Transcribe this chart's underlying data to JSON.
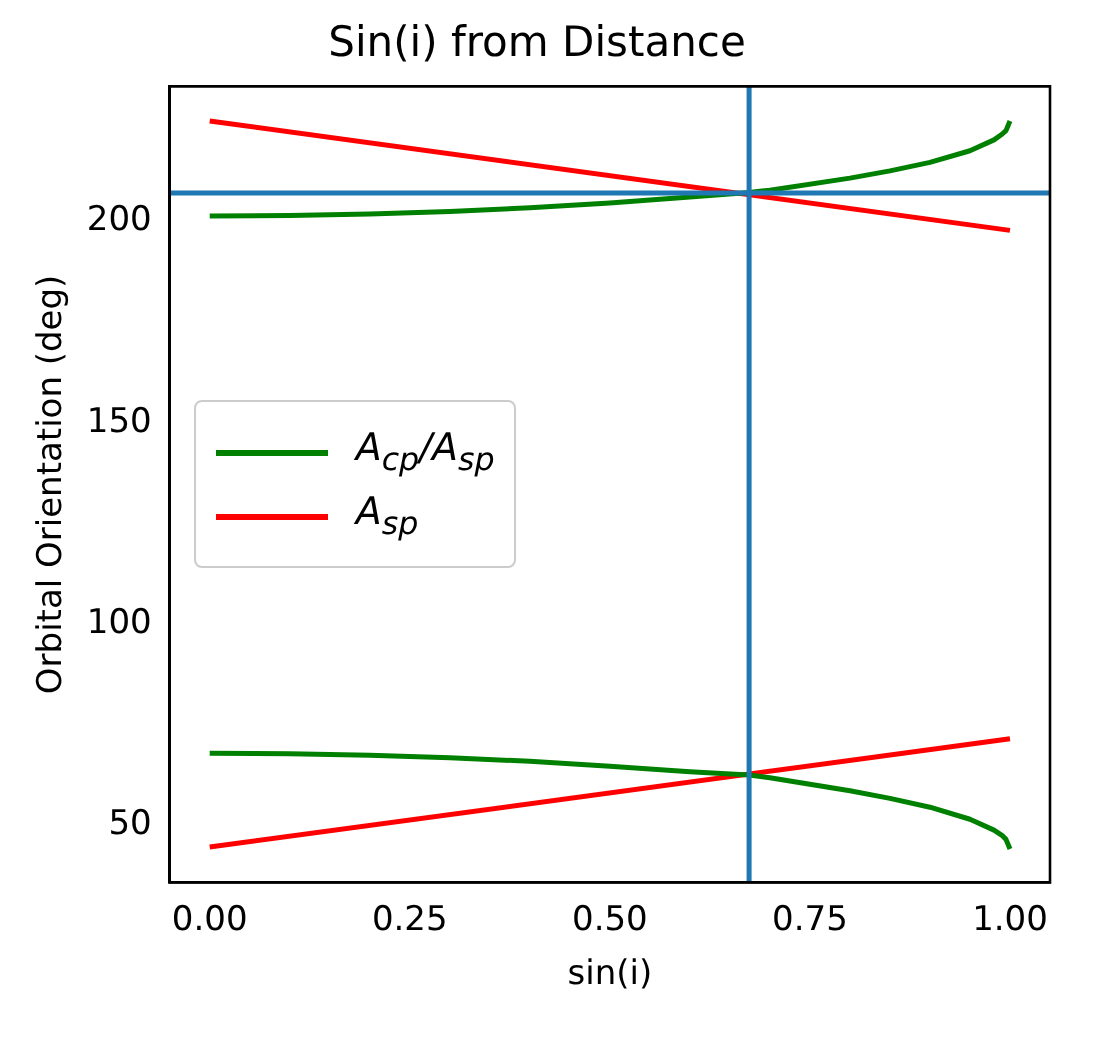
{
  "chart_data": {
    "type": "line",
    "title": "Sin(i) from Distance",
    "xlabel": "sin(i)",
    "ylabel": "Orbital Orientation (deg)",
    "xlim": [
      -0.05,
      1.05
    ],
    "ylim": [
      35.7,
      233.6
    ],
    "xticks": [
      {
        "value": 0,
        "label": "0.00"
      },
      {
        "value": 0.25,
        "label": "0.25"
      },
      {
        "value": 0.5,
        "label": "0.50"
      },
      {
        "value": 0.75,
        "label": "0.75"
      },
      {
        "value": 1,
        "label": "1.00"
      }
    ],
    "yticks": [
      50,
      100,
      150,
      200
    ],
    "legend": "left",
    "series": [
      {
        "name": "A$_{cp}$/A$_{sp}$",
        "color": "#008000",
        "x": [
          0,
          0.1,
          0.2,
          0.3,
          0.4,
          0.5,
          0.6,
          0.674,
          0.7,
          0.8,
          0.85,
          0.9,
          0.95,
          0.98,
          0.99,
          0.995,
          1
        ],
        "values": [
          201.4,
          201.5,
          201.9,
          202.5,
          203.4,
          204.6,
          206.1,
          207.2,
          207.8,
          210.8,
          212.6,
          214.7,
          217.6,
          220.3,
          221.7,
          222.6,
          225
        ]
      },
      {
        "color": "#008000",
        "x": [
          0,
          0.1,
          0.2,
          0.3,
          0.4,
          0.5,
          0.6,
          0.674,
          0.7,
          0.8,
          0.85,
          0.9,
          0.95,
          0.98,
          0.99,
          0.995,
          1
        ],
        "values": [
          67.8,
          67.7,
          67.3,
          66.7,
          65.8,
          64.6,
          63.2,
          62.4,
          61.7,
          58.5,
          56.6,
          54.4,
          51.4,
          48.7,
          47.4,
          46.4,
          44
        ]
      },
      {
        "name": "A$_{sp}$",
        "color": "#ff0000",
        "x": [
          0,
          1
        ],
        "values": [
          225,
          197.8
        ]
      },
      {
        "color": "#ff0000",
        "x": [
          0,
          1
        ],
        "values": [
          44.5,
          71.4
        ]
      }
    ],
    "ref_lines": [
      {
        "axis": "x",
        "value": 0.674,
        "color": "#1f77b4"
      },
      {
        "axis": "y",
        "value": 207.1,
        "color": "#1f77b4"
      }
    ]
  }
}
